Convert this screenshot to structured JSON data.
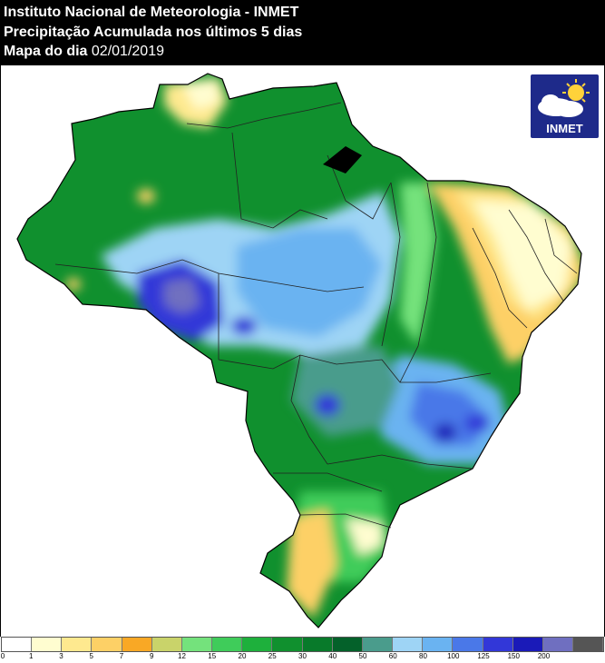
{
  "header": {
    "line1": "Instituto Nacional de Meteorologia - INMET",
    "line2": "Precipitação Acumulada nos últimos 5 dias",
    "line3_prefix": "Mapa do dia",
    "line3_date": "02/01/2019"
  },
  "logo": {
    "text": "INMET",
    "icon": "sun-cloud-icon"
  },
  "legend": {
    "ticks": [
      "0",
      "1",
      "3",
      "5",
      "7",
      "9",
      "12",
      "15",
      "20",
      "25",
      "30",
      "40",
      "50",
      "60",
      "80",
      "100",
      "125",
      "150",
      "200"
    ],
    "colors": [
      "#ffffff",
      "#fffdd0",
      "#fee98f",
      "#fdd066",
      "#f9a825",
      "#c9d36a",
      "#74e27c",
      "#3fcc5a",
      "#1eb03c",
      "#10902e",
      "#087a2a",
      "#04612a",
      "#4a9c8c",
      "#9ed4f5",
      "#6ab3f1",
      "#4a78e8",
      "#3237d8",
      "#1a1ab8",
      "#6f6fc0",
      "#555555"
    ]
  },
  "colors": {
    "background": "#ffffff",
    "header_bg": "#000000",
    "border": "#000000"
  }
}
